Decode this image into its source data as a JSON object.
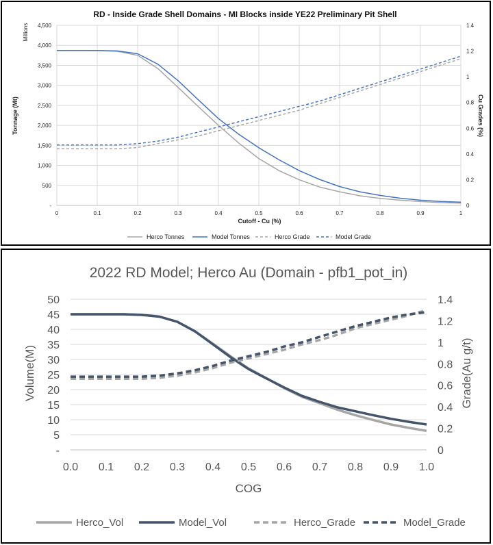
{
  "chart_data": [
    {
      "type": "line",
      "title": "RD - Inside Grade Shell Domains - MI Blocks inside YE22 Preliminary Pit Shell",
      "xlabel": "Cutoff - Cu (%)",
      "ylabel": "Tonnage (Mt)",
      "ylabel_units": "Millions",
      "y2label": "Cu Grades (%)",
      "x": [
        0,
        0.05,
        0.1,
        0.15,
        0.2,
        0.25,
        0.3,
        0.35,
        0.4,
        0.45,
        0.5,
        0.55,
        0.6,
        0.65,
        0.7,
        0.75,
        0.8,
        0.85,
        0.9,
        0.95,
        1.0
      ],
      "xlim": [
        0,
        1
      ],
      "ylim": [
        0,
        4500
      ],
      "y2lim": [
        0,
        1.4
      ],
      "x_ticks": [
        "0",
        "0.1",
        "0.2",
        "0.3",
        "0.4",
        "0.5",
        "0.6",
        "0.7",
        "0.8",
        "0.9",
        "1"
      ],
      "y_ticks": [
        "-",
        "500",
        "1,000",
        "1,500",
        "2,000",
        "2,500",
        "3,000",
        "3,500",
        "4,000",
        "4,500"
      ],
      "y2_ticks": [
        "0",
        "0.2",
        "0.4",
        "0.6",
        "0.8",
        "1",
        "1.2",
        "1.4"
      ],
      "series": [
        {
          "name": "Herco Tonnes",
          "axis": "left",
          "color": "#a6a6a6",
          "dash": false,
          "values": [
            3870,
            3870,
            3870,
            3850,
            3750,
            3420,
            2950,
            2470,
            2000,
            1560,
            1170,
            870,
            640,
            460,
            340,
            240,
            175,
            130,
            95,
            70,
            55
          ]
        },
        {
          "name": "Model Tonnes",
          "axis": "left",
          "color": "#4472c4",
          "dash": false,
          "values": [
            3870,
            3870,
            3870,
            3860,
            3790,
            3530,
            3120,
            2640,
            2170,
            1780,
            1440,
            1140,
            870,
            650,
            470,
            340,
            250,
            180,
            130,
            100,
            80
          ]
        },
        {
          "name": "Herco Grade",
          "axis": "right",
          "color": "#a6a6a6",
          "dash": true,
          "values": [
            0.44,
            0.44,
            0.44,
            0.44,
            0.45,
            0.48,
            0.51,
            0.54,
            0.58,
            0.62,
            0.66,
            0.7,
            0.74,
            0.79,
            0.84,
            0.89,
            0.94,
            0.99,
            1.04,
            1.09,
            1.14
          ]
        },
        {
          "name": "Model Grade",
          "axis": "right",
          "color": "#4472c4",
          "dash": true,
          "values": [
            0.47,
            0.47,
            0.47,
            0.47,
            0.48,
            0.5,
            0.53,
            0.57,
            0.61,
            0.65,
            0.69,
            0.73,
            0.77,
            0.81,
            0.86,
            0.91,
            0.96,
            1.01,
            1.06,
            1.11,
            1.16
          ]
        }
      ],
      "legend": "bottom"
    },
    {
      "type": "line",
      "title": "2022 RD Model; Herco Au (Domain - pfb1_pot_in)",
      "xlabel": "COG",
      "ylabel": "Volume(M)",
      "y2label": "Grade(Au g/t)",
      "x": [
        0,
        0.05,
        0.1,
        0.15,
        0.2,
        0.25,
        0.3,
        0.35,
        0.4,
        0.45,
        0.5,
        0.55,
        0.6,
        0.65,
        0.7,
        0.75,
        0.8,
        0.85,
        0.9,
        0.95,
        1.0
      ],
      "xlim": [
        0,
        1
      ],
      "ylim": [
        0,
        50
      ],
      "y2lim": [
        0,
        1.4
      ],
      "x_ticks": [
        "0.0",
        "0.1",
        "0.2",
        "0.3",
        "0.4",
        "0.5",
        "0.6",
        "0.7",
        "0.8",
        "0.9",
        "1.0"
      ],
      "y_ticks": [
        "-",
        "5",
        "10",
        "15",
        "20",
        "25",
        "30",
        "35",
        "40",
        "45",
        "50"
      ],
      "y2_ticks": [
        "0",
        "0.2",
        "0.4",
        "0.6",
        "0.8",
        "1",
        "1.2",
        "1.4"
      ],
      "series": [
        {
          "name": "Herco_Vol",
          "axis": "left",
          "color": "#a6a6a6",
          "dash": false,
          "values": [
            45,
            45,
            45,
            45,
            44.8,
            44.2,
            42.5,
            39.3,
            35.2,
            31,
            27,
            23.8,
            20.5,
            17.6,
            15.5,
            13.3,
            11.5,
            9.9,
            8.4,
            7.3,
            6.3
          ]
        },
        {
          "name": "Model_Vol",
          "axis": "left",
          "color": "#44546a",
          "dash": false,
          "values": [
            45,
            45,
            45,
            45,
            44.8,
            44.2,
            42.5,
            39.3,
            35,
            30.7,
            26.8,
            23.7,
            20.7,
            17.9,
            15.9,
            14.1,
            12.8,
            11.5,
            10.3,
            9.3,
            8.4
          ]
        },
        {
          "name": "Herco_Grade",
          "axis": "right",
          "color": "#a6a6a6",
          "dash": true,
          "values": [
            0.66,
            0.66,
            0.66,
            0.66,
            0.66,
            0.67,
            0.69,
            0.72,
            0.76,
            0.81,
            0.85,
            0.89,
            0.93,
            0.98,
            1.02,
            1.07,
            1.13,
            1.17,
            1.21,
            1.25,
            1.3
          ]
        },
        {
          "name": "Model_Grade",
          "axis": "right",
          "color": "#44546a",
          "dash": true,
          "values": [
            0.68,
            0.68,
            0.68,
            0.68,
            0.68,
            0.69,
            0.71,
            0.74,
            0.78,
            0.83,
            0.87,
            0.91,
            0.96,
            1.0,
            1.05,
            1.1,
            1.15,
            1.19,
            1.23,
            1.26,
            1.28
          ]
        }
      ],
      "legend": "bottom"
    }
  ]
}
